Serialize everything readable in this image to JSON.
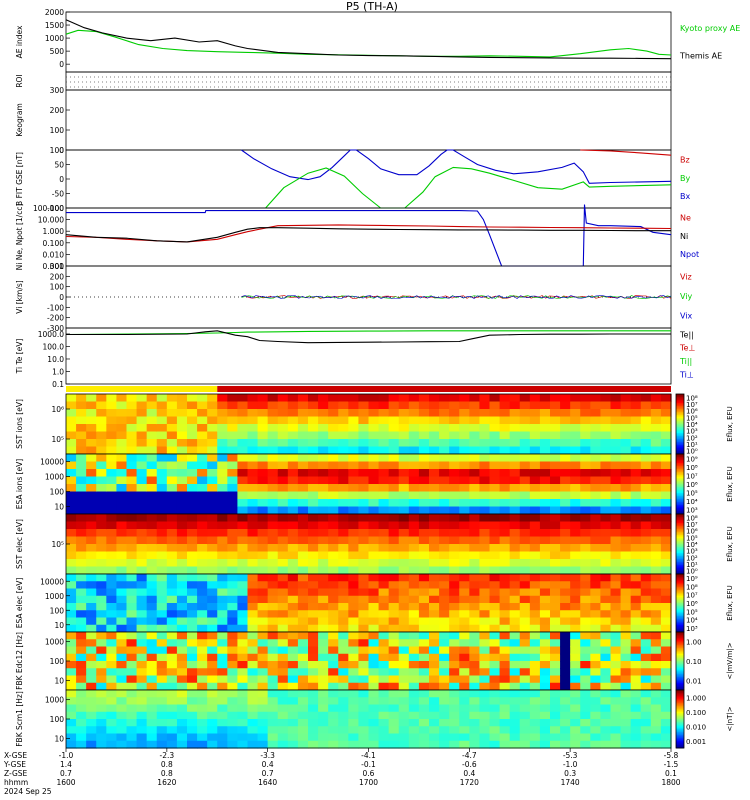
{
  "chart_data": {
    "type": "line",
    "title": "P5 (TH-A)",
    "panels": [
      {
        "id": "ae",
        "ylabel": "AE index",
        "scale": "linear",
        "yticks": [
          "2000",
          "1500",
          "1000",
          "500",
          "0"
        ],
        "legend": [
          {
            "label": "Kyoto proxy AE",
            "color": "#00cc00"
          },
          {
            "label": "Themis AE",
            "color": "#000000"
          }
        ],
        "series": [
          {
            "name": "Kyoto proxy AE",
            "color": "#00cc00",
            "x": [
              0,
              2,
              5,
              8,
              12,
              16,
              20,
              25,
              30,
              35,
              40,
              45,
              50,
              55,
              60,
              65,
              70,
              75,
              80,
              85,
              90,
              93,
              96,
              98,
              100
            ],
            "y": [
              1150,
              1300,
              1250,
              1050,
              750,
              600,
              520,
              480,
              450,
              420,
              380,
              360,
              340,
              320,
              300,
              300,
              320,
              300,
              280,
              400,
              550,
              600,
              500,
              380,
              350
            ]
          },
          {
            "name": "Themis AE",
            "color": "#000000",
            "x": [
              0,
              3,
              6,
              10,
              14,
              18,
              22,
              25,
              28,
              30,
              35,
              40,
              45,
              50,
              55,
              60,
              65,
              70,
              75,
              80,
              85,
              90,
              95,
              100
            ],
            "y": [
              1700,
              1400,
              1200,
              1000,
              900,
              1000,
              850,
              900,
              700,
              600,
              450,
              400,
              350,
              330,
              320,
              300,
              280,
              260,
              250,
              240,
              230,
              230,
              220,
              210
            ]
          }
        ]
      },
      {
        "id": "roi",
        "ylabel": "ROI",
        "scale": "linear",
        "yticks": []
      },
      {
        "id": "keogram",
        "ylabel": "Keogram",
        "scale": "linear",
        "yticks": [
          "300",
          "200",
          "100",
          "0"
        ]
      },
      {
        "id": "bfit",
        "ylabel": "B FIT GSE [nT]",
        "scale": "linear",
        "yticks": [
          "100",
          "50",
          "0",
          "-50",
          "-100"
        ],
        "legend": [
          {
            "label": "Bz",
            "color": "#cc0000"
          },
          {
            "label": "By",
            "color": "#00cc00"
          },
          {
            "label": "Bx",
            "color": "#0000cc"
          }
        ],
        "series": [
          {
            "name": "Bx",
            "color": "#0000cc",
            "x": [
              29,
              31,
              34,
              37,
              40,
              42,
              44,
              46,
              47,
              48,
              50,
              52,
              55,
              58,
              60,
              62,
              63,
              64,
              66,
              68,
              71,
              74,
              78,
              82,
              84,
              85.5,
              86.5,
              90,
              100
            ],
            "y": [
              100,
              70,
              35,
              8,
              -2,
              8,
              40,
              80,
              100,
              100,
              70,
              35,
              15,
              15,
              45,
              85,
              100,
              100,
              75,
              50,
              30,
              18,
              25,
              40,
              55,
              25,
              -15,
              -12,
              -8
            ]
          },
          {
            "name": "By",
            "color": "#00cc00",
            "x": [
              33,
              36,
              40,
              43,
              46,
              49,
              52,
              56,
              59,
              61,
              64,
              67,
              70,
              74,
              78,
              82,
              85.5,
              86.5,
              90,
              100
            ],
            "y": [
              -100,
              -30,
              20,
              38,
              10,
              -50,
              -100,
              -100,
              -45,
              8,
              40,
              35,
              20,
              -5,
              -30,
              -35,
              -10,
              -28,
              -25,
              -20
            ]
          },
          {
            "name": "Bz",
            "color": "#cc0000",
            "x": [
              85,
              90,
              95,
              100
            ],
            "y": [
              100,
              97,
              90,
              82
            ]
          }
        ]
      },
      {
        "id": "ni",
        "ylabel": "Ni Ne, Npot [1/cc]",
        "scale": "log",
        "yticks": [
          "100.000",
          "10.000",
          "1.000",
          "0.100",
          "0.010",
          "0.001"
        ],
        "legend": [
          {
            "label": "Ne",
            "color": "#cc0000"
          },
          {
            "label": "Ni",
            "color": "#000000"
          },
          {
            "label": "Npot",
            "color": "#0000cc"
          }
        ],
        "series": [
          {
            "name": "Npot",
            "color": "#0000cc",
            "x": [
              0,
              23,
              23.1,
              28,
              32,
              35,
              37,
              38,
              55,
              60,
              65,
              68,
              69,
              70,
              72,
              75,
              80,
              84,
              85.5,
              85.7,
              86,
              88,
              90,
              95,
              97,
              100
            ],
            "y": [
              40,
              40,
              60,
              60,
              60,
              60,
              60,
              60,
              60,
              60,
              60,
              55,
              10,
              0.5,
              0.001,
              0.001,
              0.001,
              0.001,
              0.001,
              200,
              5,
              3,
              3,
              2.5,
              0.8,
              0.5
            ]
          },
          {
            "name": "Ne",
            "color": "#cc0000",
            "x": [
              0,
              5,
              10,
              15,
              20,
              25,
              28,
              30,
              32,
              35,
              40,
              45,
              50,
              55,
              60,
              65,
              70,
              75,
              80,
              85,
              90,
              95,
              100
            ],
            "y": [
              0.35,
              0.3,
              0.2,
              0.15,
              0.12,
              0.2,
              0.5,
              0.9,
              1.5,
              3.0,
              3.2,
              3.5,
              3.2,
              3.0,
              2.8,
              2.5,
              2.3,
              2.2,
              2.1,
              2.0,
              1.9,
              1.8,
              1.7
            ]
          },
          {
            "name": "Ni",
            "color": "#000000",
            "x": [
              0,
              5,
              10,
              15,
              20,
              25,
              28,
              30,
              32,
              35,
              40,
              45,
              50,
              55,
              60,
              65,
              70,
              75,
              80,
              85,
              90,
              95,
              100
            ],
            "y": [
              0.5,
              0.3,
              0.25,
              0.15,
              0.12,
              0.3,
              0.8,
              1.5,
              2.0,
              2.0,
              1.8,
              1.6,
              1.5,
              1.4,
              1.35,
              1.3,
              1.3,
              1.25,
              1.2,
              1.2,
              1.15,
              1.1,
              1.1
            ]
          }
        ]
      },
      {
        "id": "vi",
        "ylabel": "Vi [km/s]",
        "scale": "linear",
        "yticks": [
          "300",
          "200",
          "100",
          "0",
          "-100",
          "-200",
          "-300"
        ],
        "legend": [
          {
            "label": "Viz",
            "color": "#cc0000"
          },
          {
            "label": "Viy",
            "color": "#00cc00"
          },
          {
            "label": "Vix",
            "color": "#0000cc"
          }
        ]
      },
      {
        "id": "ti",
        "ylabel": "Ti Te [eV]",
        "scale": "log",
        "yticks": [
          "1000.0",
          "100.0",
          "10.0",
          "1.0",
          "0.1"
        ],
        "legend": [
          {
            "label": "Te||",
            "color": "#000000"
          },
          {
            "label": "Te⊥",
            "color": "#cc0000"
          },
          {
            "label": "Ti||",
            "color": "#00cc00"
          },
          {
            "label": "Ti⊥",
            "color": "#0000cc"
          }
        ],
        "series": [
          {
            "name": "Ti",
            "color": "#00cc00",
            "x": [
              0,
              10,
              20,
              25,
              28,
              30,
              35,
              40,
              50,
              60,
              70,
              80,
              90,
              100
            ],
            "y": [
              900,
              1000,
              1100,
              1200,
              1300,
              1400,
              1500,
              1600,
              1700,
              1800,
              1800,
              1800,
              1800,
              1800
            ]
          },
          {
            "name": "Te",
            "color": "#000000",
            "x": [
              0,
              10,
              20,
              23,
              25,
              28,
              30,
              32,
              35,
              40,
              45,
              50,
              55,
              60,
              65,
              67,
              70,
              75,
              80,
              85,
              90,
              95,
              100
            ],
            "y": [
              900,
              900,
              1000,
              1500,
              1800,
              800,
              600,
              300,
              250,
              200,
              210,
              220,
              230,
              240,
              250,
              400,
              800,
              900,
              950,
              950,
              1000,
              1000,
              1000
            ]
          }
        ]
      },
      {
        "id": "sst_i",
        "ylabel": "SST ions [eV]",
        "scale": "log",
        "yticks": [
          "10⁶",
          "10⁵"
        ],
        "cbar": {
          "label": "Eflux, EFU",
          "ticks": [
            "10⁸",
            "10⁷",
            "10⁶",
            "10⁵",
            "10⁴",
            "10³",
            "10²",
            "10¹",
            "10⁰"
          ]
        }
      },
      {
        "id": "esa_i",
        "ylabel": "ESA ions [eV]",
        "scale": "log",
        "yticks": [
          "10000",
          "1000",
          "100",
          "10"
        ],
        "cbar": {
          "label": "Eflux, EFU",
          "ticks": [
            "10⁹",
            "10⁸",
            "10⁷",
            "10⁶",
            "10⁵",
            "10⁴",
            "10³"
          ]
        }
      },
      {
        "id": "sst_e",
        "ylabel": "SST elec [eV]",
        "scale": "log",
        "yticks": [
          "10⁵"
        ],
        "cbar": {
          "label": "Eflux, EFU",
          "ticks": [
            "10⁸",
            "10⁷",
            "10⁶",
            "10⁵",
            "10⁴",
            "10³",
            "10²",
            "10¹",
            "10⁰"
          ]
        }
      },
      {
        "id": "esa_e",
        "ylabel": "ESA elec [eV]",
        "scale": "log",
        "yticks": [
          "10000",
          "1000",
          "100",
          "10"
        ],
        "cbar": {
          "label": "Eflux, EFU",
          "ticks": [
            "10⁹",
            "10⁸",
            "10⁷",
            "10⁶",
            "10⁵",
            "10⁴",
            "10³"
          ]
        }
      },
      {
        "id": "fbk_e",
        "ylabel": "FBK Edc12 [Hz]",
        "scale": "log",
        "yticks": [
          "1000",
          "100",
          "10"
        ],
        "cbar": {
          "label": "<|mV/m|>",
          "ticks": [
            "1.00",
            "0.10",
            "0.01"
          ]
        }
      },
      {
        "id": "fbk_b",
        "ylabel": "FBK Scm1 [Hz]",
        "scale": "log",
        "yticks": [
          "1000",
          "100",
          "10"
        ],
        "cbar": {
          "label": "<|nT|>",
          "ticks": [
            "1.000",
            "0.100",
            "0.010",
            "0.001"
          ]
        }
      }
    ],
    "xaxis": {
      "ticks": [
        {
          "x": 0,
          "vals": [
            "-1.0",
            "1.4",
            "0.7",
            "1600"
          ]
        },
        {
          "x": 16.67,
          "vals": [
            "-2.3",
            "0.8",
            "0.8",
            "1620"
          ]
        },
        {
          "x": 33.33,
          "vals": [
            "-3.3",
            "0.4",
            "0.7",
            "1640"
          ]
        },
        {
          "x": 50,
          "vals": [
            "-4.1",
            "-0.1",
            "0.6",
            "1700"
          ]
        },
        {
          "x": 66.67,
          "vals": [
            "-4.7",
            "-0.6",
            "0.4",
            "1720"
          ]
        },
        {
          "x": 83.33,
          "vals": [
            "-5.3",
            "-1.0",
            "0.3",
            "1740"
          ]
        },
        {
          "x": 100,
          "vals": [
            "-5.8",
            "-1.5",
            "0.1",
            "1800"
          ]
        }
      ],
      "rowlabels": [
        "X-GSE",
        "Y-GSE",
        "Z-GSE",
        "hhmm"
      ],
      "date": "2024 Sep 25"
    }
  }
}
